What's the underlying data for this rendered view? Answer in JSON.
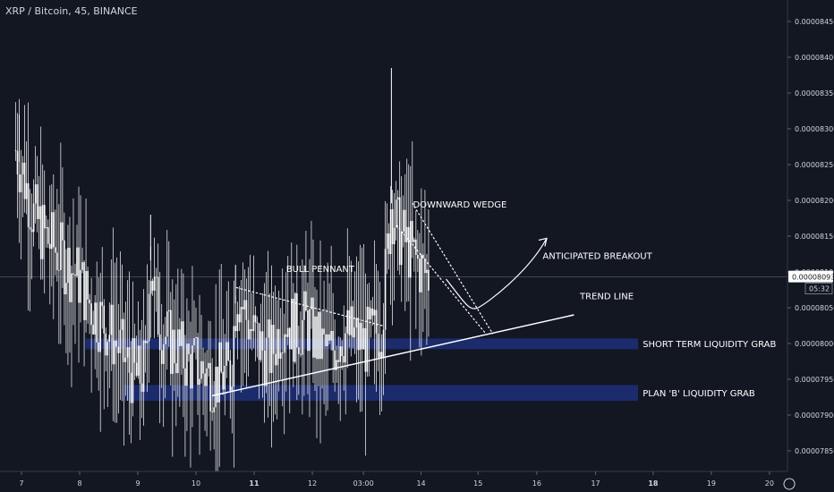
{
  "header": {
    "symbol": "XRP / Bitcoin, 45, BINANCE"
  },
  "colors": {
    "background": "#131722",
    "candle_up": "#ffffff",
    "candle_down": "#ffffff",
    "zone": "#1c2b6b",
    "axis_text": "#d1d4dc",
    "annotation": "#ffffff"
  },
  "price_scale": {
    "ticks": [
      "0.00008450",
      "0.00008400",
      "0.00008350",
      "0.00008300",
      "0.00008250",
      "0.00008200",
      "0.00008150",
      "0.00008100",
      "0.00008050",
      "0.00008000",
      "0.00007950",
      "0.00007900",
      "0.00007850"
    ],
    "current_price": "0.00008093",
    "countdown": "05:32"
  },
  "chart_data": {
    "type": "candlestick",
    "ylim": [
      7.815e-05,
      8.47e-05
    ],
    "x_ticks": [
      {
        "label": "7",
        "day": 7.0
      },
      {
        "label": "8",
        "day": 8.0
      },
      {
        "label": "9",
        "day": 9.0
      },
      {
        "label": "10",
        "day": 10.0
      },
      {
        "label": "11",
        "day": 11.0,
        "bold": true
      },
      {
        "label": "12",
        "day": 12.0
      },
      {
        "label": "03:00",
        "day": 12.88
      },
      {
        "label": "14",
        "day": 13.87
      },
      {
        "label": "15",
        "day": 14.85
      },
      {
        "label": "16",
        "day": 15.86
      },
      {
        "label": "17",
        "day": 16.87
      },
      {
        "label": "18",
        "day": 17.86,
        "bold": true
      },
      {
        "label": "19",
        "day": 18.86
      },
      {
        "label": "20",
        "day": 19.86
      }
    ],
    "price_path": [
      [
        6.9,
        8.27e-05
      ],
      [
        7.05,
        8.23e-05
      ],
      [
        7.2,
        8.18e-05
      ],
      [
        7.4,
        8.15e-05
      ],
      [
        7.6,
        8.13e-05
      ],
      [
        7.8,
        8.11e-05
      ],
      [
        8.0,
        8.09e-05
      ],
      [
        8.15,
        8.06e-05
      ],
      [
        8.3,
        8.04e-05
      ],
      [
        8.5,
        8.02e-05
      ],
      [
        8.7,
        7.99e-05
      ],
      [
        8.85,
        7.965e-05
      ],
      [
        9.0,
        7.95e-05
      ],
      [
        9.15,
        7.97e-05
      ],
      [
        9.2,
        8.13e-05
      ],
      [
        9.3,
        8.06e-05
      ],
      [
        9.4,
        8.02e-05
      ],
      [
        9.55,
        8e-05
      ],
      [
        9.7,
        7.99e-05
      ],
      [
        9.85,
        7.975e-05
      ],
      [
        10.0,
        7.97e-05
      ],
      [
        10.15,
        7.96e-05
      ],
      [
        10.35,
        7.95e-05
      ],
      [
        10.6,
        7.96e-05
      ],
      [
        10.7,
        8.08e-05
      ],
      [
        10.85,
        8.04e-05
      ],
      [
        11.0,
        8.01e-05
      ],
      [
        11.15,
        7.99e-05
      ],
      [
        11.3,
        7.985e-05
      ],
      [
        11.5,
        8.04e-05
      ],
      [
        11.7,
        8.02e-05
      ],
      [
        11.9,
        8.03e-05
      ],
      [
        12.1,
        8e-05
      ],
      [
        12.3,
        7.985e-05
      ],
      [
        12.5,
        8.015e-05
      ],
      [
        12.7,
        8.01e-05
      ],
      [
        12.9,
        8e-05
      ],
      [
        13.05,
        8.01e-05
      ],
      [
        13.2,
        8.03e-05
      ],
      [
        13.35,
        8.2e-05
      ],
      [
        13.45,
        8.16e-05
      ],
      [
        13.6,
        8.14e-05
      ],
      [
        13.75,
        8.12e-05
      ],
      [
        13.9,
        8.1e-05
      ],
      [
        14.03,
        8.093e-05
      ]
    ],
    "spikes": [
      {
        "day": 6.96,
        "high": 8.32e-05
      },
      {
        "day": 9.22,
        "high": 8.18e-05
      },
      {
        "day": 10.68,
        "high": 8.11e-05
      },
      {
        "day": 13.36,
        "high": 8.385e-05
      }
    ],
    "zones": [
      {
        "label": "SHORT TERM LIQUIDITY GRAB",
        "x0": 8.1,
        "x1": 17.6,
        "y_top": 8.007e-05,
        "y_bottom": 7.992e-05
      },
      {
        "label": "PLAN 'B' LIQUIDITY GRAB",
        "x0": 8.75,
        "x1": 17.6,
        "y_top": 7.942e-05,
        "y_bottom": 7.92e-05
      }
    ],
    "trend_lines": [
      {
        "name": "TREND LINE",
        "style": "solid",
        "points": [
          [
            10.28,
            7.927e-05
          ],
          [
            16.5,
            8.04e-05
          ]
        ]
      },
      {
        "name": "BULL PENNANT upper",
        "style": "dotted",
        "points": [
          [
            10.7,
            8.078e-05
          ],
          [
            13.2,
            8.025e-05
          ]
        ]
      },
      {
        "name": "DOWNWARD WEDGE lower",
        "style": "dotted",
        "points": [
          [
            13.45,
            8.165e-05
          ],
          [
            14.98,
            8.014e-05
          ]
        ]
      },
      {
        "name": "DOWNWARD WEDGE upper",
        "style": "dotted",
        "points": [
          [
            13.72,
            8.196e-05
          ],
          [
            15.1,
            8.014e-05
          ]
        ]
      }
    ],
    "projection": {
      "style": "curve-arrow",
      "points": [
        [
          14.3,
          8.09e-05
        ],
        [
          14.85,
          8.05e-05
        ],
        [
          15.4,
          8.08e-05
        ],
        [
          16.03,
          8.147e-05
        ]
      ]
    },
    "annotations": [
      {
        "text": "BULL PENNANT",
        "day": 11.55,
        "price": 8.1e-05
      },
      {
        "text": "DOWNWARD WEDGE",
        "day": 13.73,
        "price": 8.19e-05
      },
      {
        "text": "ANTICIPATED BREAKOUT",
        "day": 15.96,
        "price": 8.118e-05
      },
      {
        "text": "TREND LINE",
        "day": 16.6,
        "price": 8.062e-05
      },
      {
        "text": "SHORT TERM LIQUIDITY GRAB",
        "day": 17.68,
        "price": 7.995e-05
      },
      {
        "text": "PLAN 'B' LIQUIDITY GRAB",
        "day": 17.68,
        "price": 7.926e-05
      }
    ]
  }
}
